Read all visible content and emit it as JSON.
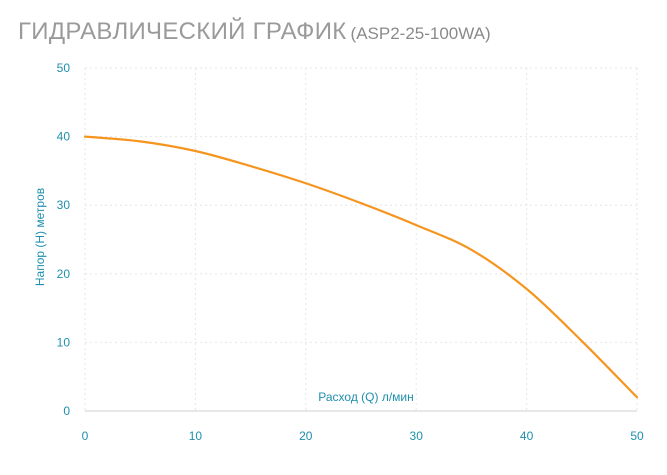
{
  "title": {
    "main": "ГИДРАВЛИЧЕСКИЙ ГРАФИК",
    "model": "(ASP2-25-100WA)"
  },
  "colors": {
    "curve": "#f5951f",
    "axis_text": "#1f8fae",
    "title": "#9a9a9a"
  },
  "chart_data": {
    "type": "line",
    "xlabel": "Расход (Q) л/мин",
    "ylabel": "Напор (H) метров",
    "xlim": [
      0,
      50
    ],
    "ylim": [
      0,
      50
    ],
    "x_ticks": [
      0,
      10,
      20,
      30,
      40,
      50
    ],
    "y_ticks": [
      0,
      10,
      20,
      30,
      40,
      50
    ],
    "grid": true,
    "series": [
      {
        "x": [
          0,
          5,
          10,
          15,
          20,
          25,
          30,
          35,
          40,
          45,
          50
        ],
        "y": [
          40,
          39.3,
          37.9,
          35.7,
          33.2,
          30.3,
          27.1,
          23.5,
          17.8,
          10.2,
          2
        ]
      }
    ]
  }
}
